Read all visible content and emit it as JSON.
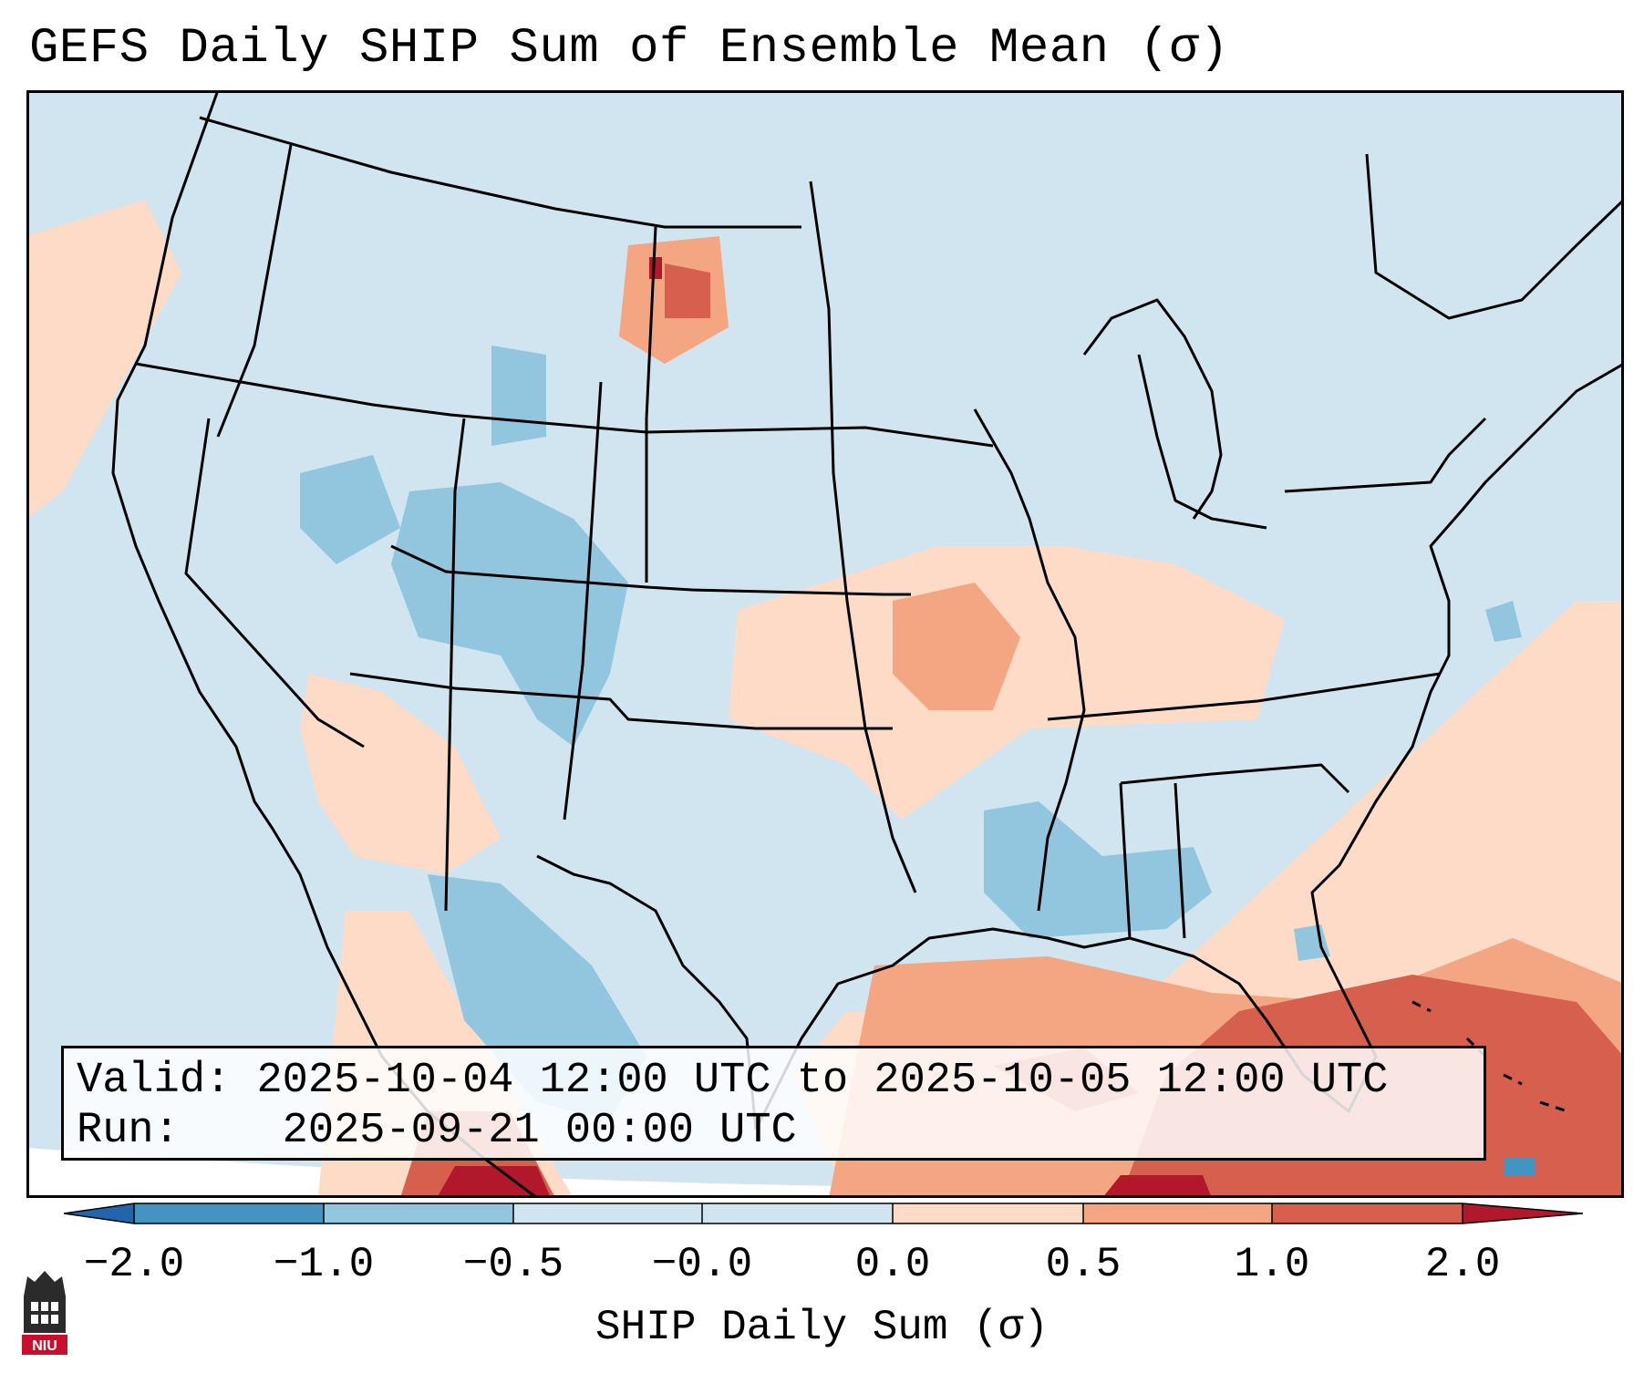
{
  "title": "GEFS Daily SHIP Sum of Ensemble Mean (σ)",
  "info": {
    "valid_label": "Valid:",
    "valid_value": "2025-10-04 12:00 UTC to 2025-10-05 12:00 UTC",
    "run_label": "Run:",
    "run_value": "2025-09-21 00:00 UTC"
  },
  "colorbar": {
    "label": "SHIP Daily Sum (σ)",
    "ticks": [
      "−2.0",
      "−1.0",
      "−0.5",
      "−0.0",
      "0.0",
      "0.5",
      "1.0",
      "2.0"
    ],
    "colors": {
      "below_min": "#2166ac",
      "c1": "#4393c3",
      "c2": "#92c5de",
      "c3": "#d1e5f0",
      "c4": "#fddbc7",
      "c5": "#f4a582",
      "c6": "#d6604d",
      "above_max": "#b2182b",
      "background": "#d1e5f0"
    }
  },
  "logo": {
    "text": "NIU",
    "colors": {
      "red": "#c8102e",
      "dark": "#2b2b2b"
    }
  }
}
